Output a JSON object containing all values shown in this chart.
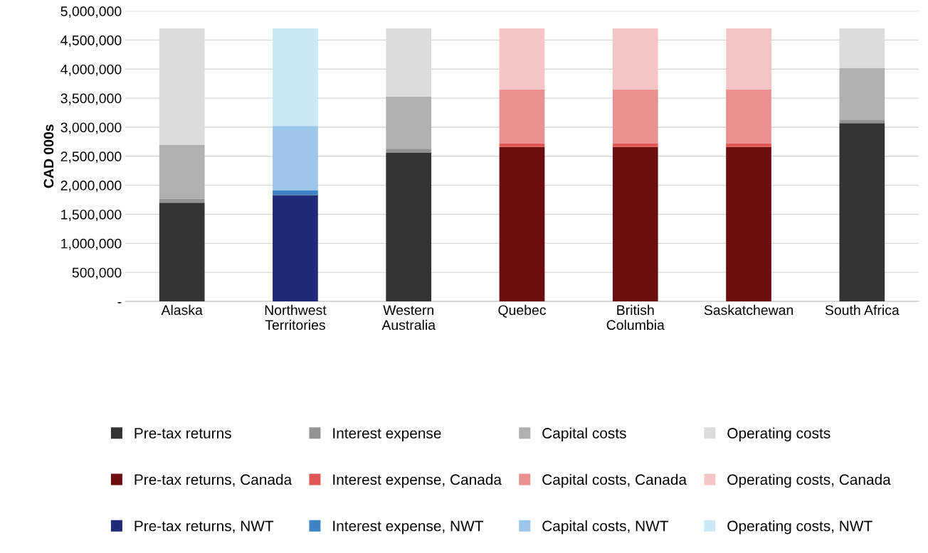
{
  "chart_data": {
    "type": "bar",
    "stacked": true,
    "ylabel": "CAD 000s",
    "categories": [
      "Alaska",
      "Northwest\nTerritories",
      "Western\nAustralia",
      "Quebec",
      "British\nColumbia",
      "Saskatchewan",
      "South Africa"
    ],
    "series": [
      {
        "name": "Pre-tax returns",
        "color": "#333333",
        "values": [
          1700000,
          null,
          2560000,
          null,
          null,
          null,
          3070000
        ]
      },
      {
        "name": "Interest expense",
        "color": "#939393",
        "values": [
          70000,
          null,
          60000,
          null,
          null,
          null,
          60000
        ]
      },
      {
        "name": "Capital costs",
        "color": "#b0b0b3",
        "values": [
          930000,
          null,
          910000,
          null,
          null,
          null,
          890000
        ]
      },
      {
        "name": "Operating costs",
        "color": "#dcdcde",
        "values": [
          2000000,
          null,
          1170000,
          null,
          null,
          null,
          680000
        ]
      },
      {
        "name": "Pre-tax returns, Canada",
        "color": "#6d0d10",
        "values": [
          null,
          null,
          null,
          2660000,
          2660000,
          2660000,
          null
        ]
      },
      {
        "name": "Interest expense, Canada",
        "color": "#e05555",
        "values": [
          null,
          null,
          null,
          60000,
          60000,
          60000,
          null
        ]
      },
      {
        "name": "Capital costs, Canada",
        "color": "#ea9090",
        "values": [
          null,
          null,
          null,
          930000,
          930000,
          930000,
          null
        ]
      },
      {
        "name": "Operating costs, Canada",
        "color": "#f5c5c5",
        "values": [
          null,
          null,
          null,
          1050000,
          1050000,
          1050000,
          null
        ]
      },
      {
        "name": "Pre-tax returns, NWT",
        "color": "#1f2a78",
        "values": [
          null,
          1830000,
          null,
          null,
          null,
          null,
          null
        ]
      },
      {
        "name": "Interest expense, NWT",
        "color": "#3d85c6",
        "values": [
          null,
          80000,
          null,
          null,
          null,
          null,
          null
        ]
      },
      {
        "name": "Capital costs, NWT",
        "color": "#9dc6ea",
        "values": [
          null,
          1110000,
          null,
          null,
          null,
          null,
          null
        ]
      },
      {
        "name": "Operating costs, NWT",
        "color": "#c9e8f8",
        "values": [
          null,
          1680000,
          null,
          null,
          null,
          null,
          null
        ]
      }
    ],
    "ylim": [
      0,
      5000000
    ],
    "yticks": [
      {
        "value": 0,
        "label": "-"
      },
      {
        "value": 500000,
        "label": "500,000"
      },
      {
        "value": 1000000,
        "label": "1,000,000"
      },
      {
        "value": 1500000,
        "label": "1,500,000"
      },
      {
        "value": 2000000,
        "label": "2,000,000"
      },
      {
        "value": 2500000,
        "label": "2,500,000"
      },
      {
        "value": 3000000,
        "label": "3,000,000"
      },
      {
        "value": 3500000,
        "label": "3,500,000"
      },
      {
        "value": 4000000,
        "label": "4,000,000"
      },
      {
        "value": 4500000,
        "label": "4,500,000"
      },
      {
        "value": 5000000,
        "label": "5,000,000"
      }
    ],
    "grid": "y",
    "legend": "bottom"
  }
}
